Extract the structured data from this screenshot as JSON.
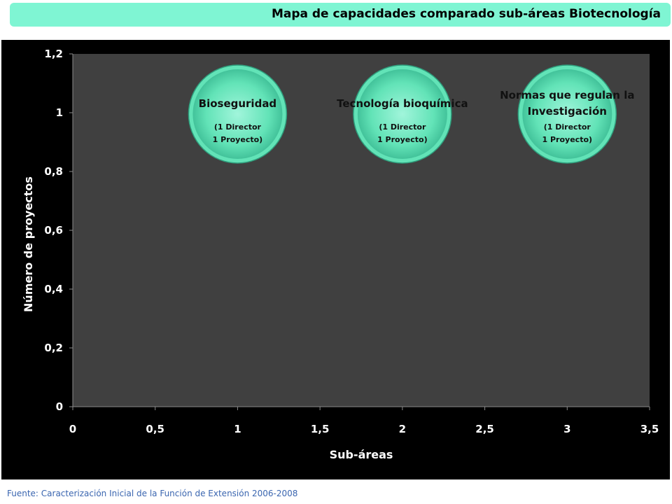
{
  "slide_title": "Mapa de capacidades comparado sub-áreas Biotecnología",
  "source_note": "Fuente: Caracterización Inicial de la Función de Extensión 2006-2008",
  "colors": {
    "title_bar": "#7ff5d3",
    "chart_background": "#000000",
    "plot_background": "#404040",
    "bubble_fill": "#62e3b7",
    "axis_text": "#ffffff",
    "source_text": "#3b66b0"
  },
  "chart_data": {
    "type": "scatter",
    "style": "bubble",
    "title": "",
    "xlabel": "Sub-áreas",
    "ylabel": "Número de proyectos",
    "xlim": [
      0,
      3.5
    ],
    "ylim": [
      0,
      1.2
    ],
    "x_ticks": [
      "0",
      "0,5",
      "1",
      "1,5",
      "2",
      "2,5",
      "3",
      "3,5"
    ],
    "y_ticks": [
      "0",
      "0,2",
      "0,4",
      "0,6",
      "0,8",
      "1",
      "1,2"
    ],
    "grid": false,
    "legend": "none",
    "points": [
      {
        "x": 1,
        "y": 1,
        "label": "Bioseguridad",
        "detail": [
          "(1 Director",
          "1 Proyecto)"
        ]
      },
      {
        "x": 2,
        "y": 1,
        "label": "Tecnología bioquímica",
        "detail": [
          "(1 Director",
          "1 Proyecto)"
        ]
      },
      {
        "x": 3,
        "y": 1,
        "label": "Normas que regulan la Investigación",
        "label_lines": [
          "Normas que regulan la",
          "Investigación"
        ],
        "detail": [
          "(1 Director",
          "1 Proyecto)"
        ]
      }
    ]
  }
}
